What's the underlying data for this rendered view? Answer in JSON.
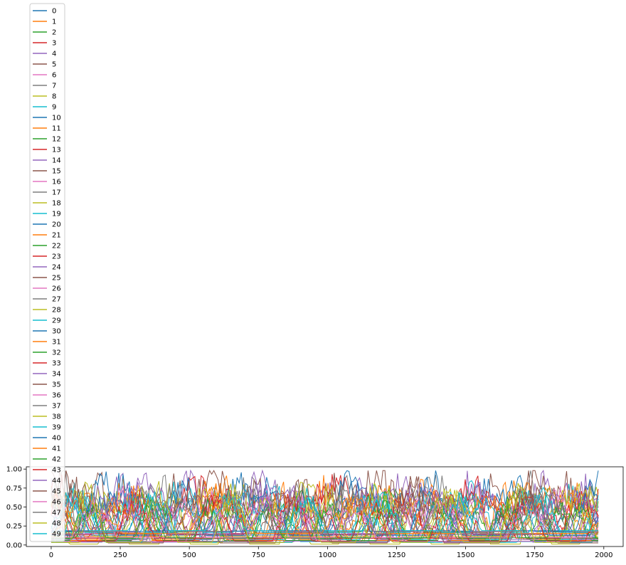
{
  "chart_data": {
    "type": "line",
    "title": "",
    "xlabel": "",
    "ylabel": "",
    "xlim": [
      -90,
      2070
    ],
    "ylim": [
      -0.02,
      1.03
    ],
    "x_ticks": [
      0,
      250,
      500,
      750,
      1000,
      1250,
      1500,
      1750,
      2000
    ],
    "x_tick_labels": [
      "0",
      "250",
      "500",
      "750",
      "1000",
      "1250",
      "1500",
      "1750",
      "2000"
    ],
    "y_ticks": [
      0.0,
      0.25,
      0.5,
      0.75,
      1.0
    ],
    "y_tick_labels": [
      "0.00",
      "0.25",
      "0.50",
      "0.75",
      "1.00"
    ],
    "x_range": [
      0,
      1980
    ],
    "y_value_range": [
      0.0,
      0.98
    ],
    "grid": false,
    "legend_placement": "upper-left (extends above plot)",
    "palette": [
      "#1f77b4",
      "#ff7f0e",
      "#2ca02c",
      "#d62728",
      "#9467bd",
      "#8c564b",
      "#e377c2",
      "#7f7f7f",
      "#bcbd22",
      "#17becf"
    ],
    "series": [
      {
        "name": "0"
      },
      {
        "name": "1"
      },
      {
        "name": "2"
      },
      {
        "name": "3"
      },
      {
        "name": "4"
      },
      {
        "name": "5"
      },
      {
        "name": "6"
      },
      {
        "name": "7"
      },
      {
        "name": "8"
      },
      {
        "name": "9"
      },
      {
        "name": "10"
      },
      {
        "name": "11"
      },
      {
        "name": "12"
      },
      {
        "name": "13"
      },
      {
        "name": "14"
      },
      {
        "name": "15"
      },
      {
        "name": "16"
      },
      {
        "name": "17"
      },
      {
        "name": "18"
      },
      {
        "name": "19"
      },
      {
        "name": "20"
      },
      {
        "name": "21"
      },
      {
        "name": "22"
      },
      {
        "name": "23"
      },
      {
        "name": "24"
      },
      {
        "name": "25"
      },
      {
        "name": "26"
      },
      {
        "name": "27"
      },
      {
        "name": "28"
      },
      {
        "name": "29"
      },
      {
        "name": "30"
      },
      {
        "name": "31"
      },
      {
        "name": "32"
      },
      {
        "name": "33"
      },
      {
        "name": "34"
      },
      {
        "name": "35"
      },
      {
        "name": "36"
      },
      {
        "name": "37"
      },
      {
        "name": "38"
      },
      {
        "name": "39"
      },
      {
        "name": "40"
      },
      {
        "name": "41"
      },
      {
        "name": "42"
      },
      {
        "name": "43"
      },
      {
        "name": "44"
      },
      {
        "name": "45"
      },
      {
        "name": "46"
      },
      {
        "name": "47"
      },
      {
        "name": "48"
      },
      {
        "name": "49"
      }
    ]
  }
}
